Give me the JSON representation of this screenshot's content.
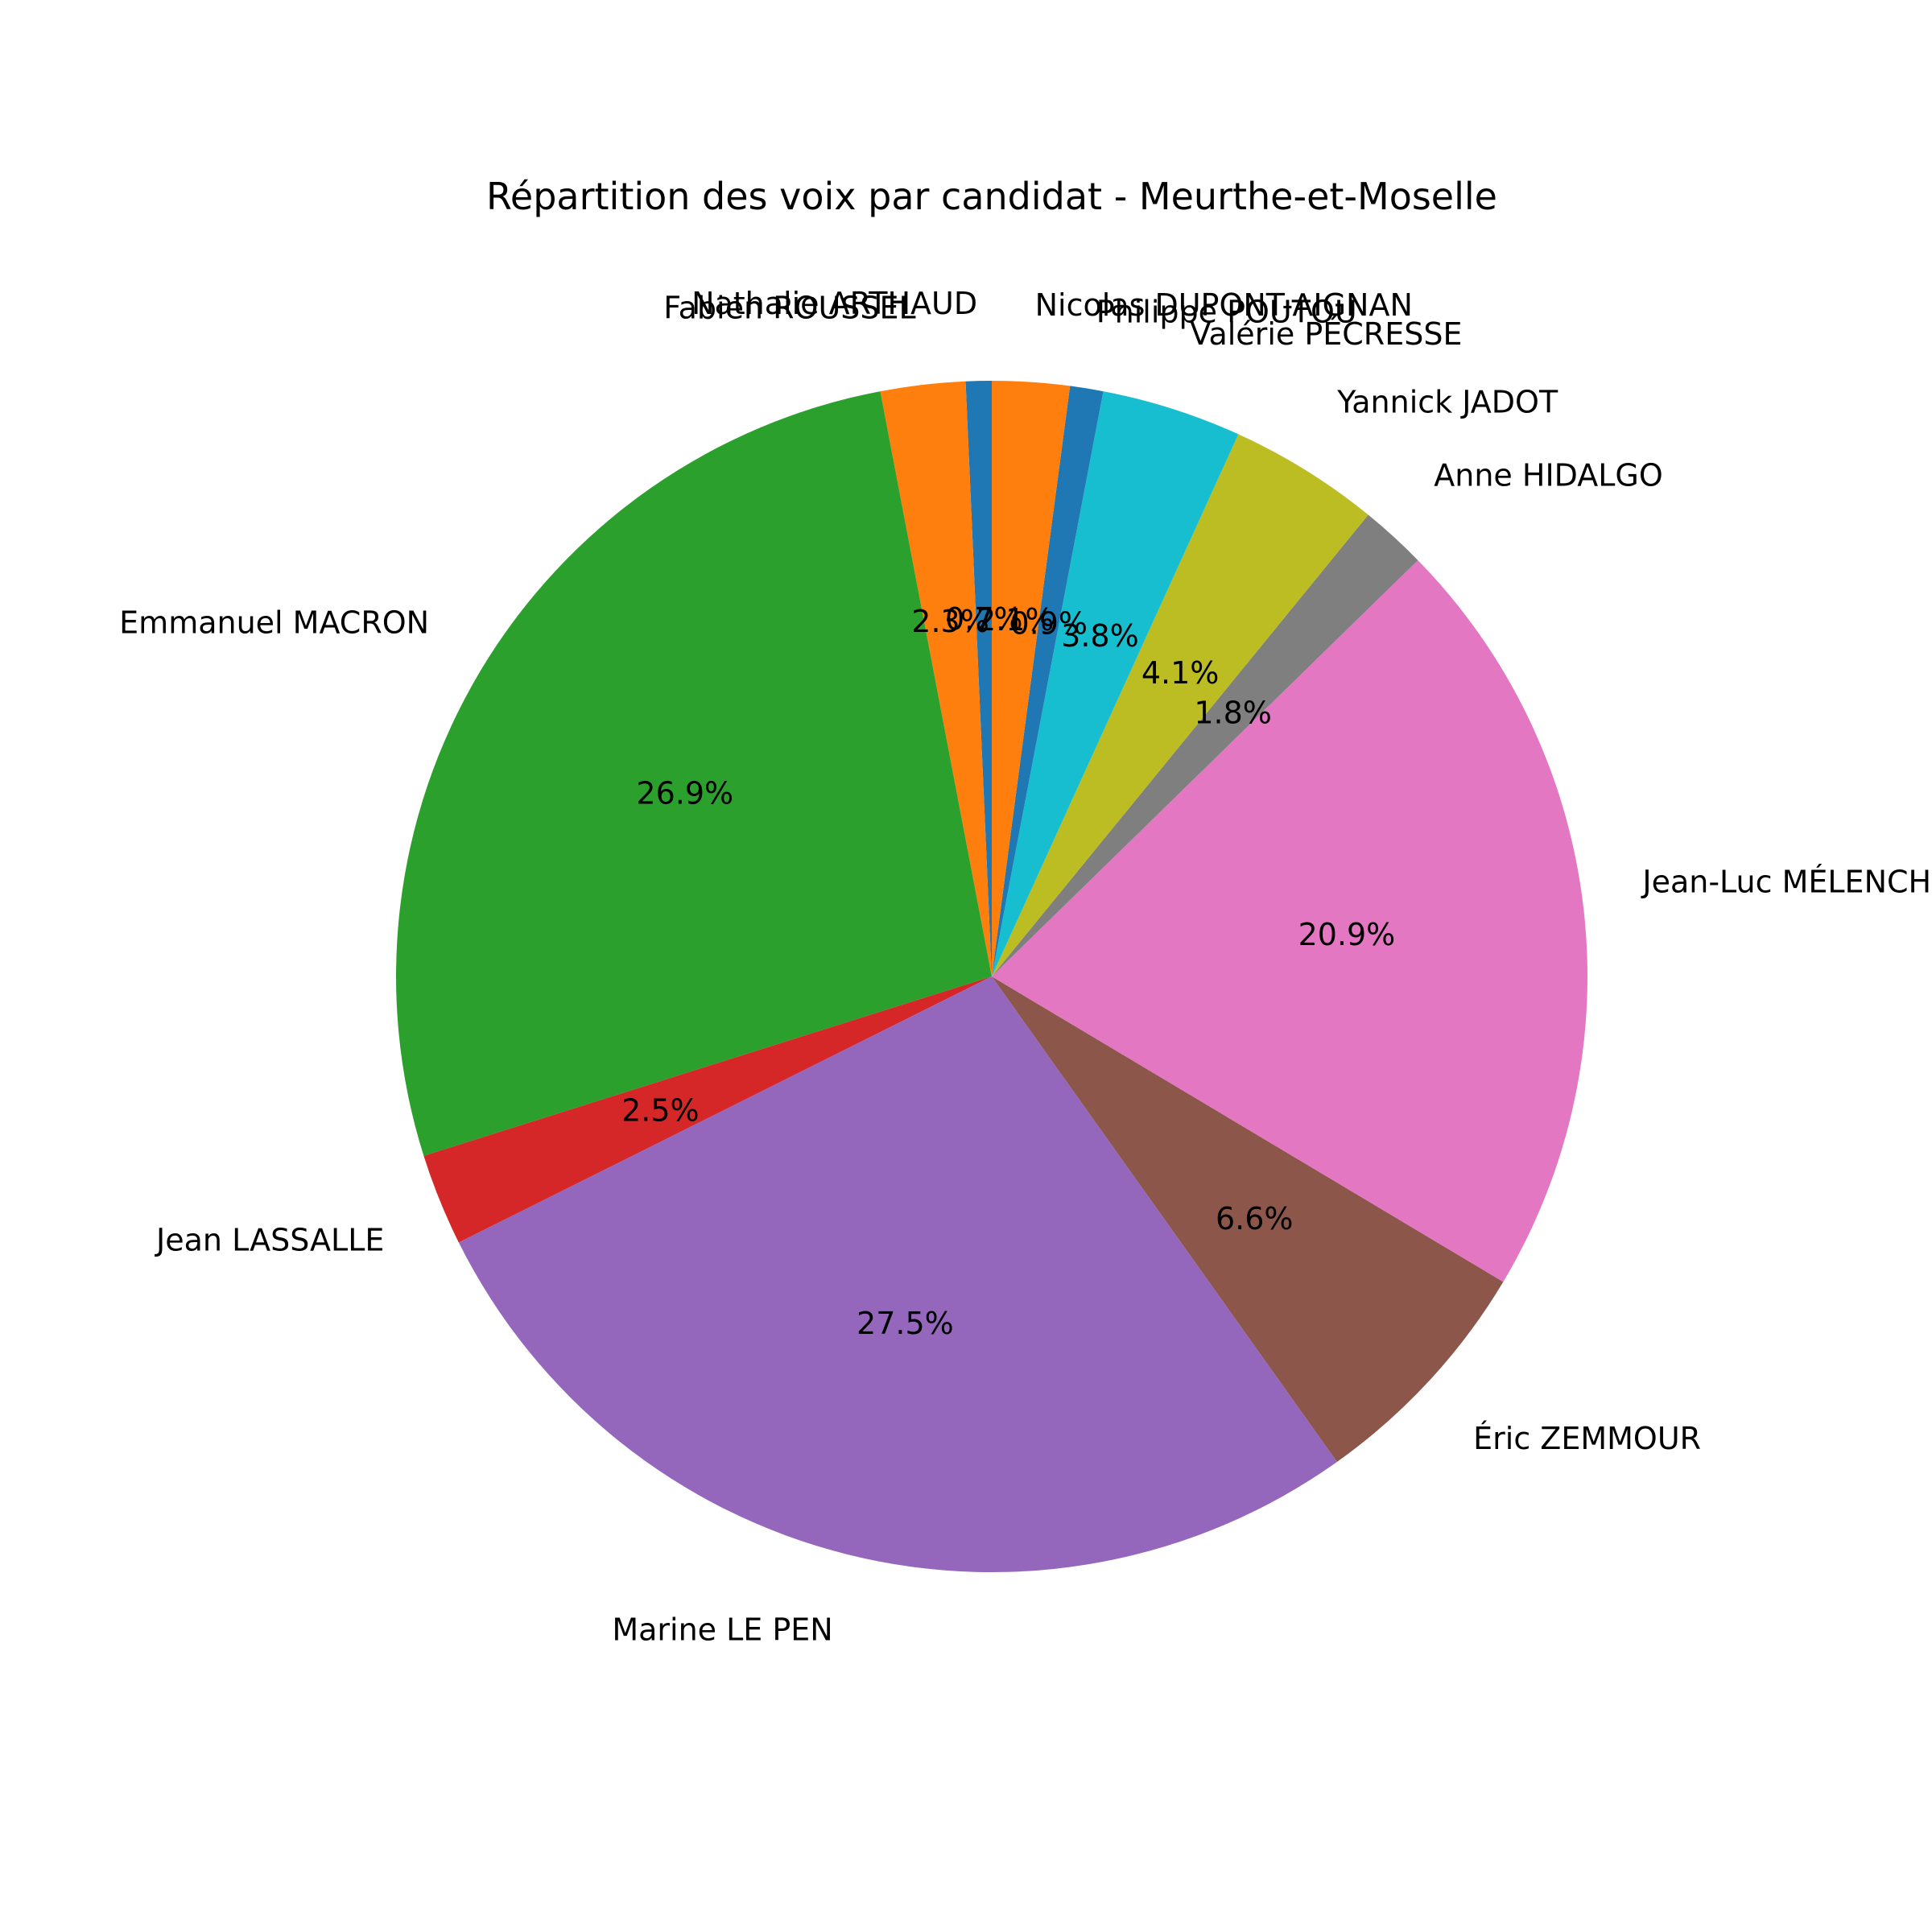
{
  "chart_data": {
    "type": "pie",
    "title": "Répartition des voix par candidat - Meurthe-et-Moselle",
    "start_angle_deg": 90,
    "direction": "counterclockwise",
    "slices": [
      {
        "label": "Nathalie ARTHAUD",
        "value": 0.7,
        "pct_label": "0.7%",
        "color": "#1f77b4"
      },
      {
        "label": "Fabien ROUSSEL",
        "value": 2.3,
        "pct_label": "2.3%",
        "color": "#ff7f0e"
      },
      {
        "label": "Emmanuel MACRON",
        "value": 26.9,
        "pct_label": "26.9%",
        "color": "#2ca02c"
      },
      {
        "label": "Jean LASSALLE",
        "value": 2.5,
        "pct_label": "2.5%",
        "color": "#d62728"
      },
      {
        "label": "Marine LE PEN",
        "value": 27.5,
        "pct_label": "27.5%",
        "color": "#9467bd"
      },
      {
        "label": "Éric ZEMMOUR",
        "value": 6.6,
        "pct_label": "6.6%",
        "color": "#8c564b"
      },
      {
        "label": "Jean-Luc MÉLENCHON",
        "value": 20.9,
        "pct_label": "20.9%",
        "color": "#e377c2"
      },
      {
        "label": "Anne HIDALGO",
        "value": 1.8,
        "pct_label": "1.8%",
        "color": "#7f7f7f"
      },
      {
        "label": "Yannick JADOT",
        "value": 4.1,
        "pct_label": "4.1%",
        "color": "#bcbd22"
      },
      {
        "label": "Valérie PÉCRESSE",
        "value": 3.8,
        "pct_label": "3.8%",
        "color": "#17becf"
      },
      {
        "label": "Philippe POUTOU",
        "value": 0.9,
        "pct_label": "0.9%",
        "color": "#1f77b4"
      },
      {
        "label": "Nicolas DUPONT-AIGNAN",
        "value": 2.1,
        "pct_label": "2.1%",
        "color": "#ff7f0e"
      }
    ]
  }
}
